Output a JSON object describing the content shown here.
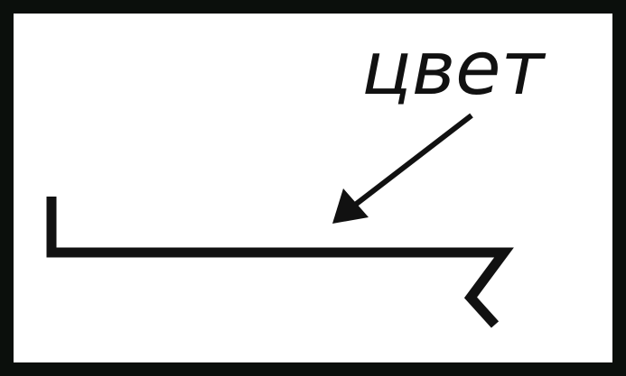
{
  "diagram": {
    "label": "цвет",
    "ink_color": "#111111",
    "background_color": "#ffffff",
    "frame_color": "#0b0f0c"
  }
}
